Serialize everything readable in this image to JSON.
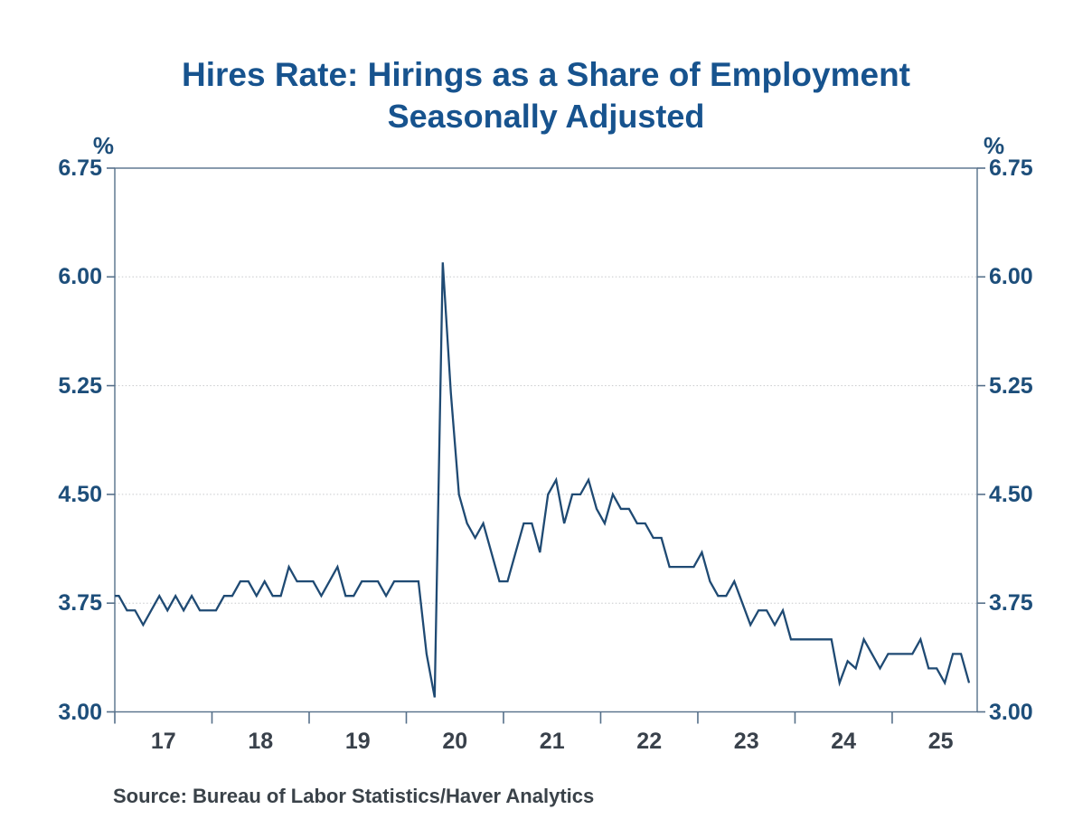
{
  "page": {
    "background": "#ffffff"
  },
  "chart_data": {
    "type": "line",
    "title": "Hires Rate: Hirings as a Share of Employment",
    "subtitle": "Seasonally Adjusted",
    "y_axis_unit_left": "%",
    "y_axis_unit_right": "%",
    "source_note": "Source:  Bureau of Labor Statistics/Haver Analytics",
    "legend": "none",
    "grid": "dotted horizontal gridlines at interior y-ticks",
    "ylim": [
      3.0,
      6.75
    ],
    "xlim_years": [
      2017.0,
      2025.875
    ],
    "y_tick_labels": [
      "6.75",
      "6.00",
      "5.25",
      "4.50",
      "3.75",
      "3.00"
    ],
    "y_tick_values": [
      6.75,
      6.0,
      5.25,
      4.5,
      3.75,
      3.0
    ],
    "gridline_values": [
      6.0,
      5.25,
      4.5,
      3.75
    ],
    "x_tick_years": [
      2017,
      2018,
      2019,
      2020,
      2021,
      2022,
      2023,
      2024,
      2025
    ],
    "x_tick_labels": [
      "17",
      "18",
      "19",
      "20",
      "21",
      "22",
      "23",
      "24",
      "25"
    ],
    "series": [
      {
        "name": "Hires rate, seasonally adjusted (%)",
        "start_month": "2016-12",
        "frequency": "monthly",
        "values": [
          3.8,
          3.8,
          3.7,
          3.7,
          3.6,
          3.7,
          3.8,
          3.7,
          3.8,
          3.7,
          3.8,
          3.7,
          3.7,
          3.7,
          3.8,
          3.8,
          3.9,
          3.9,
          3.8,
          3.9,
          3.8,
          3.8,
          4.0,
          3.9,
          3.9,
          3.9,
          3.8,
          3.9,
          4.0,
          3.8,
          3.8,
          3.9,
          3.9,
          3.9,
          3.8,
          3.9,
          3.9,
          3.9,
          3.9,
          3.4,
          3.1,
          6.1,
          5.2,
          4.5,
          4.3,
          4.2,
          4.3,
          4.1,
          3.9,
          3.9,
          4.1,
          4.3,
          4.3,
          4.1,
          4.5,
          4.6,
          4.3,
          4.5,
          4.5,
          4.6,
          4.4,
          4.3,
          4.5,
          4.4,
          4.4,
          4.3,
          4.3,
          4.2,
          4.2,
          4.0,
          4.0,
          4.0,
          4.0,
          4.1,
          3.9,
          3.8,
          3.8,
          3.9,
          3.75,
          3.6,
          3.7,
          3.7,
          3.6,
          3.7,
          3.5,
          3.5,
          3.5,
          3.5,
          3.5,
          3.5,
          3.2,
          3.35,
          3.3,
          3.5,
          3.4,
          3.3,
          3.4,
          3.4,
          3.4,
          3.4,
          3.5,
          3.3,
          3.3,
          3.2,
          3.4,
          3.4,
          3.2
        ]
      }
    ],
    "colors": {
      "title": "#17538E",
      "y_tick_label": "#1D4E7A",
      "x_tick_label": "#39414B",
      "line": "#1F4A73",
      "axis_frame": "#56708A",
      "gridline": "#C7C9CC",
      "source_text": "#3A4249",
      "background": "#FFFFFF"
    }
  }
}
